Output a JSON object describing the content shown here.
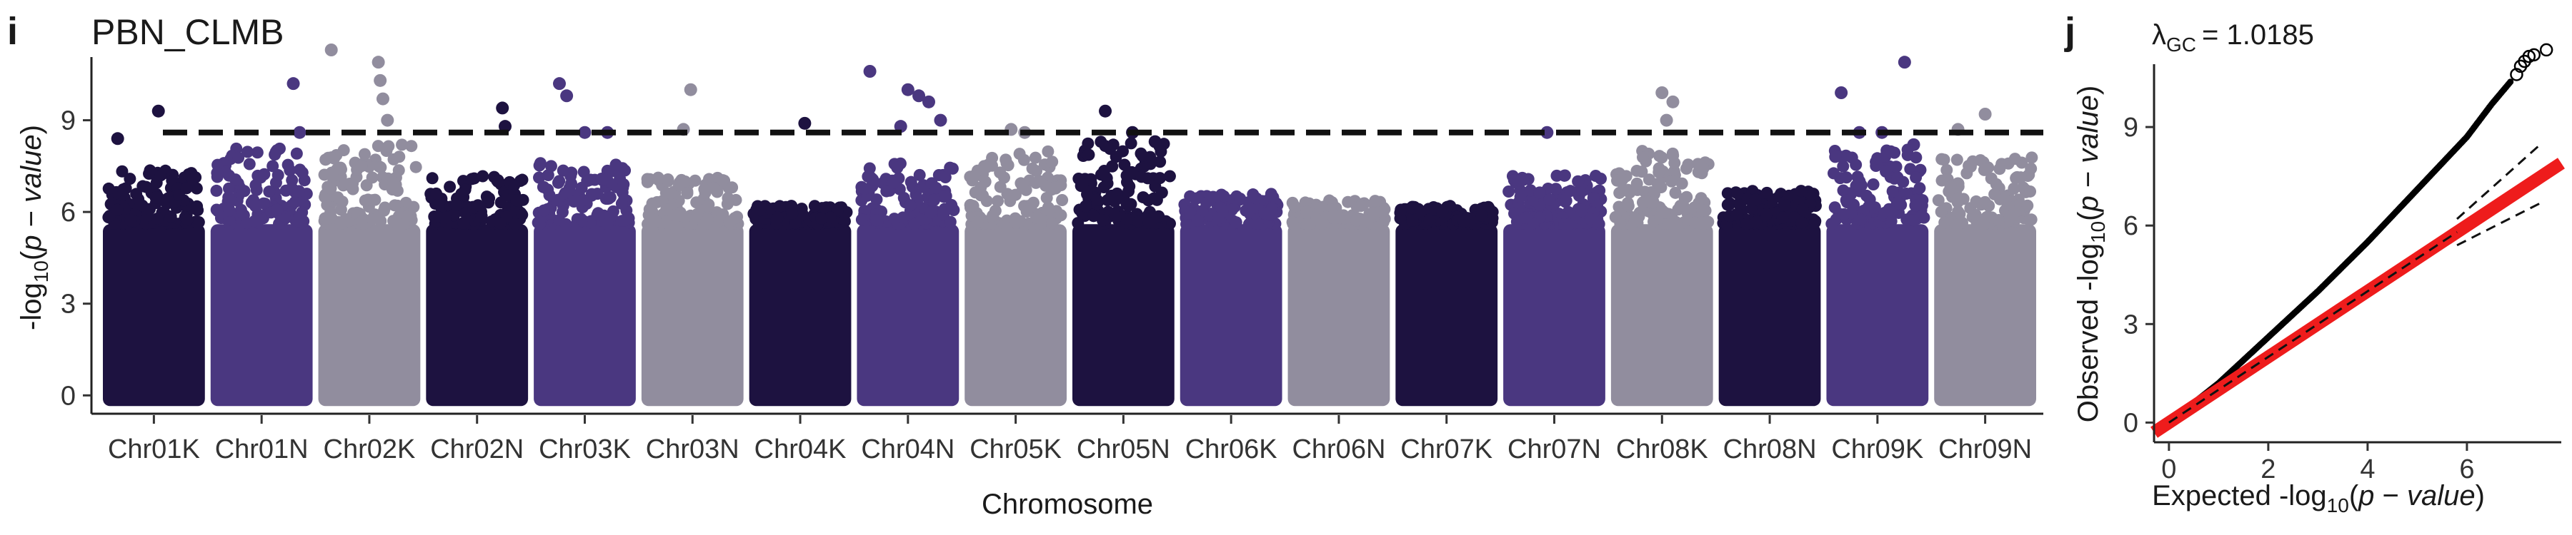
{
  "panel_i": {
    "letter": "i",
    "title": "PBN_CLMB"
  },
  "panel_j": {
    "letter": "j",
    "lambda": {
      "symbol": "λ",
      "subscript": "GC",
      "value": "= 1.0185"
    }
  },
  "chart_data": [
    {
      "type": "scatter",
      "subtype": "manhattan",
      "title": "PBN_CLMB",
      "xlabel": "Chromosome",
      "ylabel": {
        "prefix": "-log",
        "sub": "10",
        "open": "(",
        "p": "p",
        "dash": " − ",
        "word": "value",
        "close": ")"
      },
      "ylim": [
        -0.6,
        12.0
      ],
      "yticks": [
        0,
        3,
        6,
        9
      ],
      "threshold": 8.6,
      "palette": [
        "#1d1240",
        "#4a3780",
        "#918d9e"
      ],
      "categories": [
        "Chr01K",
        "Chr01N",
        "Chr02K",
        "Chr02N",
        "Chr03K",
        "Chr03N",
        "Chr04K",
        "Chr04N",
        "Chr05K",
        "Chr05N",
        "Chr06K",
        "Chr06N",
        "Chr07K",
        "Chr07N",
        "Chr08K",
        "Chr08N",
        "Chr09K",
        "Chr09N"
      ],
      "chromosome_bulk_max": [
        7.4,
        8.1,
        8.2,
        7.2,
        7.6,
        7.2,
        6.2,
        7.6,
        8.0,
        8.3,
        6.6,
        6.4,
        6.2,
        7.2,
        8.0,
        6.7,
        8.1,
        7.8
      ],
      "peaks": [
        {
          "chr": "Chr01K",
          "pos": 0.55,
          "value": 9.3
        },
        {
          "chr": "Chr01K",
          "pos": 0.1,
          "value": 8.4
        },
        {
          "chr": "Chr01N",
          "pos": 0.85,
          "value": 10.2
        },
        {
          "chr": "Chr01N",
          "pos": 0.92,
          "value": 8.6
        },
        {
          "chr": "Chr02K",
          "pos": 0.08,
          "value": 11.3
        },
        {
          "chr": "Chr02K",
          "pos": 0.6,
          "value": 10.9
        },
        {
          "chr": "Chr02K",
          "pos": 0.62,
          "value": 10.3
        },
        {
          "chr": "Chr02K",
          "pos": 0.65,
          "value": 9.7
        },
        {
          "chr": "Chr02K",
          "pos": 0.7,
          "value": 9.0
        },
        {
          "chr": "Chr02N",
          "pos": 0.78,
          "value": 9.4
        },
        {
          "chr": "Chr02N",
          "pos": 0.81,
          "value": 8.8
        },
        {
          "chr": "Chr03K",
          "pos": 0.22,
          "value": 10.2
        },
        {
          "chr": "Chr03K",
          "pos": 0.3,
          "value": 9.8
        },
        {
          "chr": "Chr03K",
          "pos": 0.5,
          "value": 8.6
        },
        {
          "chr": "Chr03K",
          "pos": 0.75,
          "value": 8.6
        },
        {
          "chr": "Chr03N",
          "pos": 0.48,
          "value": 10.0
        },
        {
          "chr": "Chr03N",
          "pos": 0.4,
          "value": 8.7
        },
        {
          "chr": "Chr04K",
          "pos": 0.55,
          "value": 8.9
        },
        {
          "chr": "Chr04N",
          "pos": 0.08,
          "value": 10.6
        },
        {
          "chr": "Chr04N",
          "pos": 0.5,
          "value": 10.0
        },
        {
          "chr": "Chr04N",
          "pos": 0.62,
          "value": 9.8
        },
        {
          "chr": "Chr04N",
          "pos": 0.73,
          "value": 9.6
        },
        {
          "chr": "Chr04N",
          "pos": 0.86,
          "value": 9.0
        },
        {
          "chr": "Chr04N",
          "pos": 0.42,
          "value": 8.8
        },
        {
          "chr": "Chr05K",
          "pos": 0.45,
          "value": 8.7
        },
        {
          "chr": "Chr05K",
          "pos": 0.6,
          "value": 8.6
        },
        {
          "chr": "Chr05N",
          "pos": 0.3,
          "value": 9.3
        },
        {
          "chr": "Chr05N",
          "pos": 0.6,
          "value": 8.6
        },
        {
          "chr": "Chr05N",
          "pos": 0.85,
          "value": 8.3
        },
        {
          "chr": "Chr07N",
          "pos": 0.42,
          "value": 8.6
        },
        {
          "chr": "Chr08K",
          "pos": 0.5,
          "value": 9.9
        },
        {
          "chr": "Chr08K",
          "pos": 0.62,
          "value": 9.6
        },
        {
          "chr": "Chr08K",
          "pos": 0.55,
          "value": 9.0
        },
        {
          "chr": "Chr09K",
          "pos": 0.1,
          "value": 9.9
        },
        {
          "chr": "Chr09K",
          "pos": 0.3,
          "value": 8.6
        },
        {
          "chr": "Chr09K",
          "pos": 0.55,
          "value": 8.6
        },
        {
          "chr": "Chr09K",
          "pos": 0.8,
          "value": 10.9
        },
        {
          "chr": "Chr09K",
          "pos": 0.9,
          "value": 8.2
        },
        {
          "chr": "Chr09N",
          "pos": 0.5,
          "value": 9.2
        },
        {
          "chr": "Chr09N",
          "pos": 0.2,
          "value": 8.7
        }
      ]
    },
    {
      "type": "scatter",
      "subtype": "qq",
      "xlabel": {
        "prefix": "Expected -log",
        "sub": "10",
        "open": "(",
        "p": "p",
        "dash": " − ",
        "word": "value",
        "close": ")"
      },
      "ylabel": {
        "prefix": "Observed -log",
        "sub": "10",
        "open": "(",
        "p": "p",
        "dash": " − ",
        "word": "value",
        "close": ")"
      },
      "xlim": [
        -0.3,
        7.9
      ],
      "ylim": [
        -0.6,
        12.0
      ],
      "xticks": [
        0,
        2,
        4,
        6
      ],
      "yticks": [
        0,
        3,
        6,
        9
      ],
      "observed_curve": [
        [
          0,
          0
        ],
        [
          1,
          1.2
        ],
        [
          2,
          2.6
        ],
        [
          3,
          4.0
        ],
        [
          4,
          5.5
        ],
        [
          5,
          7.1
        ],
        [
          6,
          8.7
        ],
        [
          6.5,
          9.7
        ],
        [
          7,
          10.6
        ],
        [
          7.3,
          11.2
        ],
        [
          7.6,
          11.3
        ]
      ],
      "expected_line": {
        "color": "#ee1c1c",
        "from": [
          -0.3,
          -0.3
        ],
        "to": [
          7.9,
          7.9
        ]
      },
      "confidence_band": {
        "upper": [
          [
            5.8,
            6.2
          ],
          [
            7.5,
            8.5
          ]
        ],
        "lower": [
          [
            5.8,
            5.4
          ],
          [
            7.5,
            6.7
          ]
        ]
      }
    }
  ]
}
